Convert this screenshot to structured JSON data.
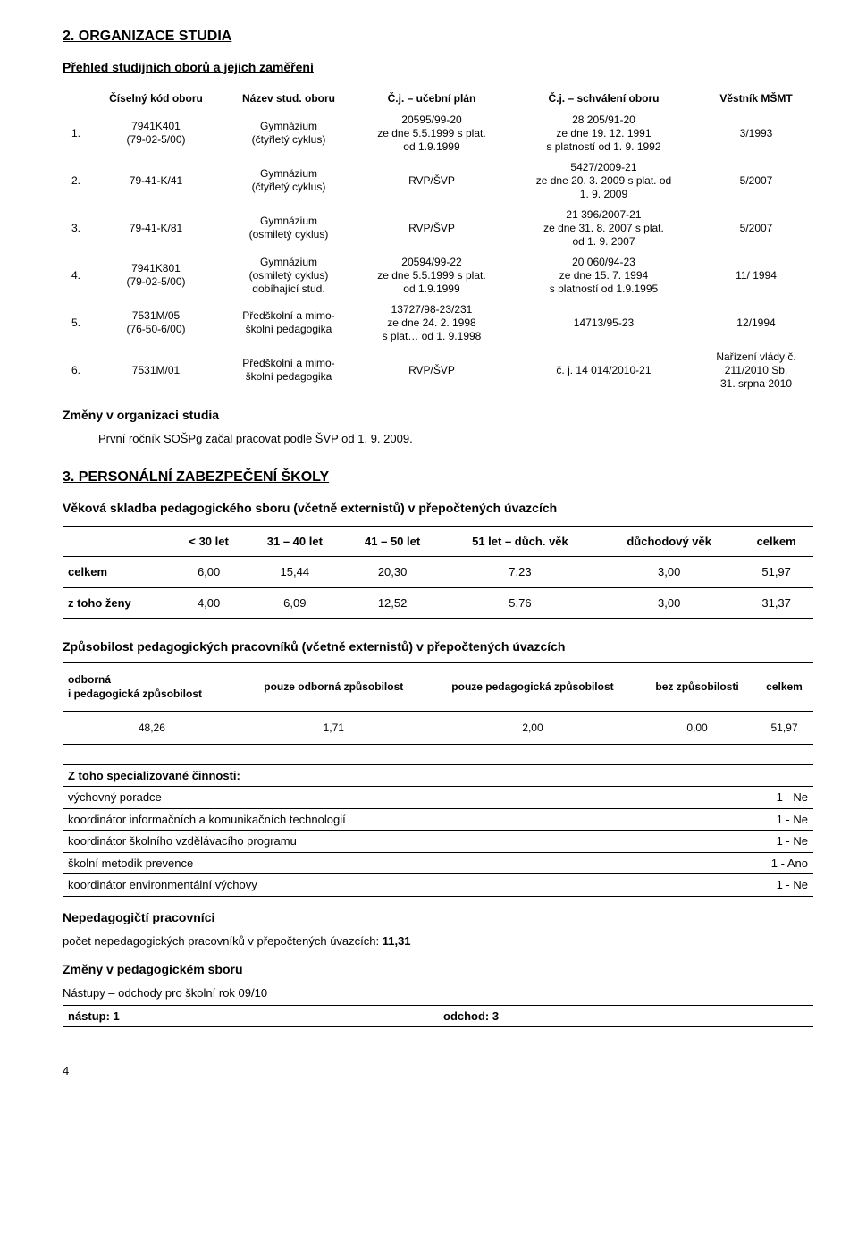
{
  "section2": {
    "title": "2. ORGANIZACE STUDIA",
    "subtitle": "Přehled studijních oborů a jejich zaměření",
    "headers": {
      "col1": "Číselný kód oboru",
      "col2": "Název stud. oboru",
      "col3": "Č.j. – učební plán",
      "col4": "Č.j. – schválení oboru",
      "col5": "Věstník MŠMT"
    },
    "rows": [
      {
        "num": "1.",
        "code": "7941K401\n(79-02-5/00)",
        "name": "Gymnázium\n(čtyřletý cyklus)",
        "plan": "20595/99-20\nze dne 5.5.1999 s plat.\nod 1.9.1999",
        "approval": "28 205/91-20\nze dne 19. 12. 1991\ns platností od 1. 9. 1992",
        "bulletin": "3/1993"
      },
      {
        "num": "2.",
        "code": "79-41-K/41",
        "name": "Gymnázium\n(čtyřletý cyklus)",
        "plan": "RVP/ŠVP",
        "approval": "5427/2009-21\nze dne 20. 3. 2009 s plat. od\n1. 9. 2009",
        "bulletin": "5/2007"
      },
      {
        "num": "3.",
        "code": "79-41-K/81",
        "name": "Gymnázium\n(osmiletý cyklus)",
        "plan": "RVP/ŠVP",
        "approval": "21 396/2007-21\nze dne 31. 8. 2007 s plat.\nod 1. 9. 2007",
        "bulletin": "5/2007"
      },
      {
        "num": "4.",
        "code": "7941K801\n(79-02-5/00)",
        "name": "Gymnázium\n(osmiletý cyklus)\ndobíhající stud.",
        "plan": "20594/99-22\nze dne 5.5.1999 s plat.\nod 1.9.1999",
        "approval": "20 060/94-23\nze dne 15. 7. 1994\ns platností od 1.9.1995",
        "bulletin": "11/ 1994"
      },
      {
        "num": "5.",
        "code": "7531M/05\n(76-50-6/00)",
        "name": "Předškolní a mimo-\nškolní pedagogika",
        "plan": "13727/98-23/231\nze dne 24. 2. 1998\ns plat… od 1. 9.1998",
        "approval": "14713/95-23",
        "bulletin": "12/1994"
      },
      {
        "num": "6.",
        "code": "7531M/01",
        "name": "Předškolní a mimo-\nškolní pedagogika",
        "plan": "RVP/ŠVP",
        "approval": "č. j. 14 014/2010-21",
        "bulletin": "Nařízení vlády č.\n211/2010 Sb.\n31. srpna 2010"
      }
    ],
    "changes_title": "Změny v organizaci studia",
    "changes_text": "První ročník SOŠPg začal pracovat podle ŠVP od 1. 9. 2009."
  },
  "section3": {
    "title": "3. PERSONÁLNÍ ZABEZPEČENÍ ŠKOLY",
    "age_heading": "Věková skladba pedagogického sboru (včetně externistů) v přepočtených úvazcích",
    "age_table": {
      "headers": [
        "",
        "< 30 let",
        "31 – 40 let",
        "41 – 50 let",
        "51 let – důch. věk",
        "důchodový věk",
        "celkem"
      ],
      "rows": [
        {
          "label": "celkem",
          "v": [
            "6,00",
            "15,44",
            "20,30",
            "7,23",
            "3,00",
            "51,97"
          ]
        },
        {
          "label": "z toho ženy",
          "v": [
            "4,00",
            "6,09",
            "12,52",
            "5,76",
            "3,00",
            "31,37"
          ]
        }
      ]
    },
    "qual_heading": "Způsobilost pedagogických pracovníků (včetně externistů) v přepočtených úvazcích",
    "qual_table": {
      "headers": [
        "odborná\ni pedagogická způsobilost",
        "pouze odborná způsobilost",
        "pouze pedagogická způsobilost",
        "bez způsobilosti",
        "celkem"
      ],
      "row": [
        "48,26",
        "1,71",
        "2,00",
        "0,00",
        "51,97"
      ]
    },
    "spec_heading": "Z toho specializované činnosti:",
    "spec_rows": [
      {
        "label": "výchovný poradce",
        "val": "1 - Ne"
      },
      {
        "label": "koordinátor informačních a komunikačních technologií",
        "val": "1 - Ne"
      },
      {
        "label": "koordinátor školního vzdělávacího programu",
        "val": "1 - Ne"
      },
      {
        "label": "školní metodik prevence",
        "val": "1 - Ano"
      },
      {
        "label": "koordinátor environmentální výchovy",
        "val": "1 - Ne"
      }
    ],
    "nonped_title": "Nepedagogičtí pracovníci",
    "nonped_text": "počet nepedagogických pracovníků v přepočtených úvazcích: 11,31",
    "nonped_bold": "11,31",
    "staff_changes_title": "Změny v pedagogickém sboru",
    "staff_changes_text": "Nástupy – odchody pro školní rok 09/10",
    "dep_row": {
      "left": "nástup: 1",
      "right": "odchod: 3"
    }
  },
  "page_number": "4"
}
